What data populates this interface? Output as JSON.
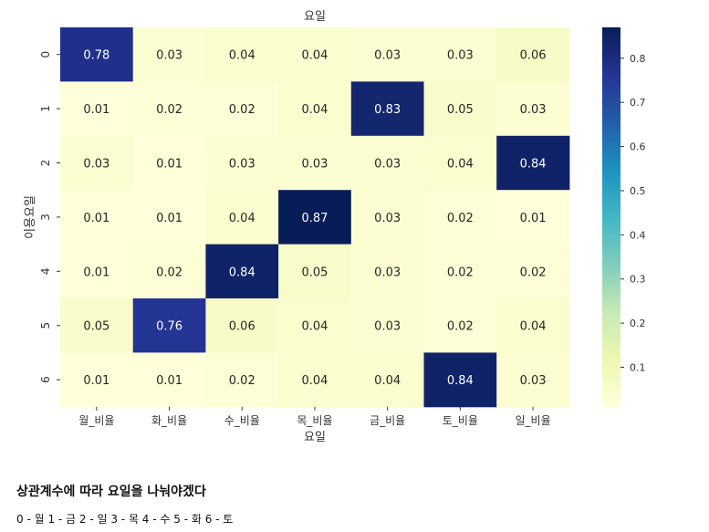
{
  "chart_data": {
    "type": "heatmap",
    "title": "요일",
    "xlabel": "요일",
    "ylabel": "이용요일",
    "x_categories": [
      "월_비율",
      "화_비율",
      "수_비율",
      "목_비율",
      "금_비율",
      "토_비율",
      "일_비율"
    ],
    "y_categories": [
      "0",
      "1",
      "2",
      "3",
      "4",
      "5",
      "6"
    ],
    "values": [
      [
        0.78,
        0.03,
        0.04,
        0.04,
        0.03,
        0.03,
        0.06
      ],
      [
        0.01,
        0.02,
        0.02,
        0.04,
        0.83,
        0.05,
        0.03
      ],
      [
        0.03,
        0.01,
        0.03,
        0.03,
        0.03,
        0.04,
        0.84
      ],
      [
        0.01,
        0.01,
        0.04,
        0.87,
        0.03,
        0.02,
        0.01
      ],
      [
        0.01,
        0.02,
        0.84,
        0.05,
        0.03,
        0.02,
        0.02
      ],
      [
        0.05,
        0.76,
        0.06,
        0.04,
        0.03,
        0.02,
        0.04
      ],
      [
        0.01,
        0.01,
        0.02,
        0.04,
        0.04,
        0.84,
        0.03
      ]
    ],
    "value_labels": [
      [
        "0.78",
        "0.03",
        "0.04",
        "0.04",
        "0.03",
        "0.03",
        "0.06"
      ],
      [
        "0.01",
        "0.02",
        "0.02",
        "0.04",
        "0.83",
        "0.05",
        "0.03"
      ],
      [
        "0.03",
        "0.01",
        "0.03",
        "0.03",
        "0.03",
        "0.04",
        "0.84"
      ],
      [
        "0.01",
        "0.01",
        "0.04",
        "0.87",
        "0.03",
        "0.02",
        "0.01"
      ],
      [
        "0.01",
        "0.02",
        "0.84",
        "0.05",
        "0.03",
        "0.02",
        "0.02"
      ],
      [
        "0.05",
        "0.76",
        "0.06",
        "0.04",
        "0.03",
        "0.02",
        "0.04"
      ],
      [
        "0.01",
        "0.01",
        "0.02",
        "0.04",
        "0.04",
        "0.84",
        "0.03"
      ]
    ],
    "colormap": "YlGnBu",
    "colorbar": {
      "range": [
        0.01,
        0.87
      ],
      "ticks": [
        0.1,
        0.2,
        0.3,
        0.4,
        0.5,
        0.6,
        0.7,
        0.8
      ],
      "tick_labels": [
        "0.1",
        "0.2",
        "0.3",
        "0.4",
        "0.5",
        "0.6",
        "0.7",
        "0.8"
      ]
    },
    "grid": false
  },
  "notes": {
    "heading": "상관계수에 따라 요일을 나눠야겠다",
    "mapping": "0 - 월 1 - 금 2 - 일 3 - 목 4 - 수 5 - 화 6 - 토"
  }
}
